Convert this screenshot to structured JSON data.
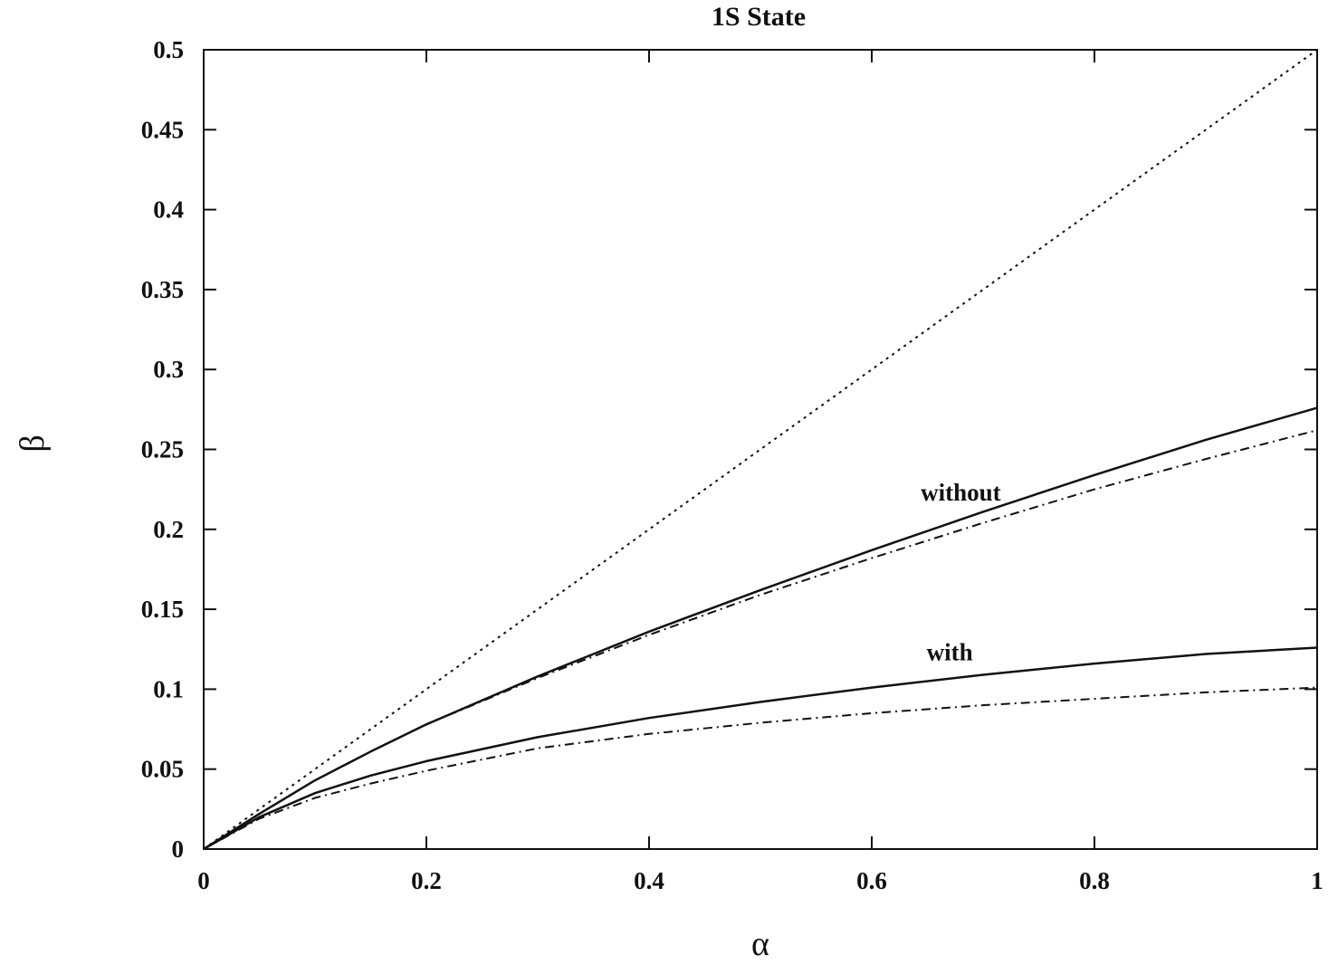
{
  "chart_data": {
    "type": "line",
    "title": "1S State",
    "xlabel": "α",
    "ylabel": "β",
    "xlim": [
      0,
      1
    ],
    "ylim": [
      0,
      0.5
    ],
    "xticks": [
      "0",
      "0.2",
      "0.4",
      "0.6",
      "0.8",
      "1"
    ],
    "yticks": [
      "0",
      "0.05",
      "0.1",
      "0.15",
      "0.2",
      "0.25",
      "0.3",
      "0.35",
      "0.4",
      "0.45",
      "0.5"
    ],
    "grid": false,
    "legend": "none",
    "series": [
      {
        "style": "dotted",
        "x": [
          0,
          1
        ],
        "y": [
          0,
          0.5
        ]
      },
      {
        "style": "solid",
        "x": [
          0,
          0.05,
          0.1,
          0.15,
          0.2,
          0.3,
          0.4,
          0.5,
          0.6,
          0.7,
          0.8,
          0.9,
          1.0
        ],
        "y": [
          0,
          0.022,
          0.043,
          0.061,
          0.078,
          0.108,
          0.136,
          0.162,
          0.187,
          0.211,
          0.234,
          0.256,
          0.276
        ]
      },
      {
        "style": "dash-dot",
        "x": [
          0,
          0.05,
          0.1,
          0.15,
          0.2,
          0.3,
          0.4,
          0.5,
          0.6,
          0.7,
          0.8,
          0.9,
          1.0
        ],
        "y": [
          0,
          0.022,
          0.043,
          0.061,
          0.078,
          0.107,
          0.134,
          0.159,
          0.182,
          0.204,
          0.225,
          0.244,
          0.262
        ]
      },
      {
        "style": "solid",
        "x": [
          0,
          0.05,
          0.1,
          0.15,
          0.2,
          0.3,
          0.4,
          0.5,
          0.6,
          0.7,
          0.8,
          0.9,
          1.0
        ],
        "y": [
          0,
          0.02,
          0.035,
          0.046,
          0.055,
          0.07,
          0.082,
          0.092,
          0.101,
          0.109,
          0.116,
          0.122,
          0.126
        ]
      },
      {
        "style": "dash-dot",
        "x": [
          0,
          0.05,
          0.1,
          0.15,
          0.2,
          0.3,
          0.4,
          0.5,
          0.6,
          0.7,
          0.8,
          0.9,
          1.0
        ],
        "y": [
          0,
          0.019,
          0.032,
          0.041,
          0.049,
          0.063,
          0.072,
          0.079,
          0.085,
          0.09,
          0.094,
          0.098,
          0.101
        ]
      }
    ],
    "annotations": [
      {
        "text": "without",
        "x": 0.68,
        "y": 0.218
      },
      {
        "text": "with",
        "x": 0.67,
        "y": 0.118
      }
    ]
  }
}
